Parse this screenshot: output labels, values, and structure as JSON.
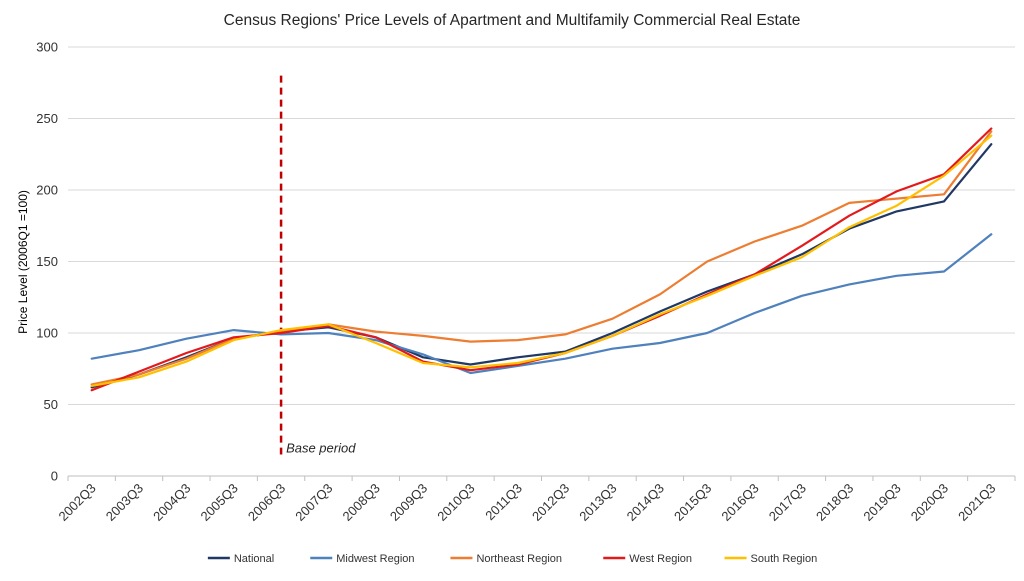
{
  "chart_data": {
    "type": "line",
    "title": "Census Regions' Price Levels of Apartment and Multifamily Commercial Real Estate",
    "xlabel": "",
    "ylabel": "Price Level (2006Q1 =100)",
    "ylim": [
      0,
      300
    ],
    "yticks": [
      0,
      50,
      100,
      150,
      200,
      250,
      300
    ],
    "grid": true,
    "legend_position": "bottom",
    "categories": [
      "2002Q3",
      "2003Q3",
      "2004Q3",
      "2005Q3",
      "2006Q3",
      "2007Q3",
      "2008Q3",
      "2009Q3",
      "2010Q3",
      "2011Q3",
      "2012Q3",
      "2013Q3",
      "2014Q3",
      "2015Q3",
      "2016Q3",
      "2017Q3",
      "2018Q3",
      "2019Q3",
      "2020Q3",
      "2021Q3"
    ],
    "series": [
      {
        "name": "National",
        "color": "#1f3864",
        "values": [
          62,
          71,
          83,
          96,
          101,
          104,
          97,
          83,
          78,
          83,
          87,
          100,
          115,
          129,
          141,
          155,
          173,
          185,
          192,
          232
        ]
      },
      {
        "name": "Midwest Region",
        "color": "#4f81bd",
        "values": [
          82,
          88,
          96,
          102,
          99,
          100,
          95,
          85,
          72,
          77,
          82,
          89,
          93,
          100,
          114,
          126,
          134,
          140,
          143,
          169
        ]
      },
      {
        "name": "Northeast Region",
        "color": "#ed7d31",
        "values": [
          64,
          71,
          82,
          96,
          101,
          106,
          101,
          98,
          94,
          95,
          99,
          110,
          127,
          150,
          164,
          175,
          191,
          194,
          197,
          241
        ]
      },
      {
        "name": "West Region",
        "color": "#e31a1c",
        "values": [
          60,
          73,
          86,
          97,
          100,
          105,
          97,
          80,
          74,
          78,
          86,
          98,
          112,
          127,
          141,
          161,
          182,
          199,
          211,
          243
        ]
      },
      {
        "name": "South Region",
        "color": "#ffc000",
        "values": [
          63,
          69,
          80,
          95,
          102,
          106,
          93,
          79,
          76,
          79,
          86,
          98,
          113,
          126,
          140,
          153,
          174,
          189,
          210,
          238
        ]
      }
    ],
    "annotations": [
      {
        "text": "Base period",
        "category": "2006Q3",
        "value_range": [
          15,
          280
        ],
        "color": "#c00000",
        "style": "dashed"
      }
    ]
  }
}
